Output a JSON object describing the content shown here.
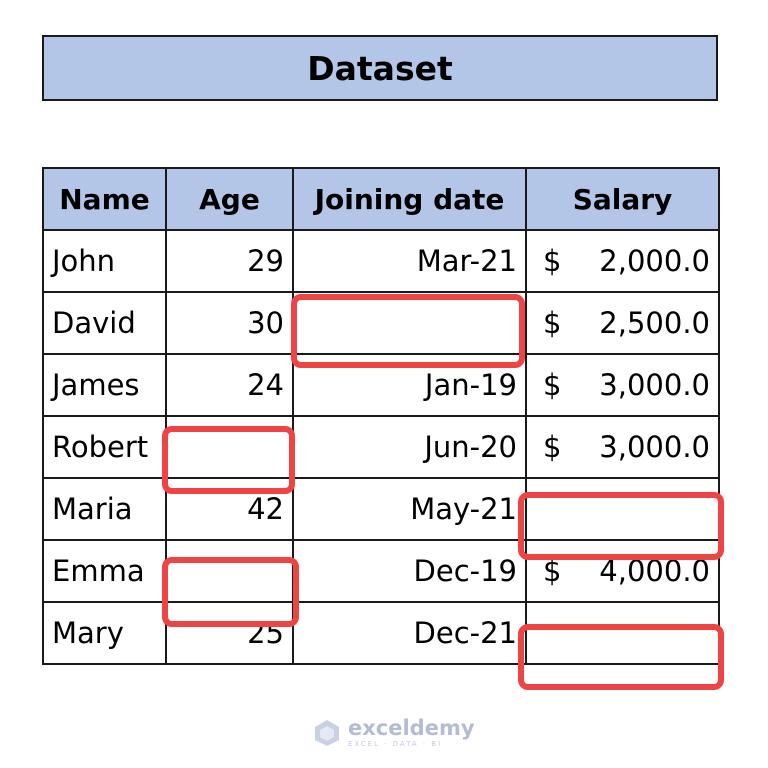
{
  "title": "Dataset",
  "table": {
    "headers": [
      "Name",
      "Age",
      "Joining date",
      "Salary"
    ],
    "rows": [
      {
        "name": "John",
        "age": "29",
        "date": "Mar-21",
        "currency": "$",
        "salary": "2,000.0"
      },
      {
        "name": "David",
        "age": "30",
        "date": "",
        "currency": "$",
        "salary": "2,500.0"
      },
      {
        "name": "James",
        "age": "24",
        "date": "Jan-19",
        "currency": "$",
        "salary": "3,000.0"
      },
      {
        "name": "Robert",
        "age": "",
        "date": "Jun-20",
        "currency": "$",
        "salary": "3,000.0"
      },
      {
        "name": "Maria",
        "age": "42",
        "date": "May-21",
        "currency": "",
        "salary": ""
      },
      {
        "name": "Emma",
        "age": "",
        "date": "Dec-19",
        "currency": "$",
        "salary": "4,000.0"
      },
      {
        "name": "Mary",
        "age": "25",
        "date": "Dec-21",
        "currency": "",
        "salary": ""
      }
    ]
  },
  "colors": {
    "header_fill": "#b4c6e7",
    "highlight": "#ef4444",
    "border": "#1a1a1a"
  },
  "watermark": {
    "name": "exceldemy",
    "tagline": "EXCEL · DATA · BI"
  }
}
